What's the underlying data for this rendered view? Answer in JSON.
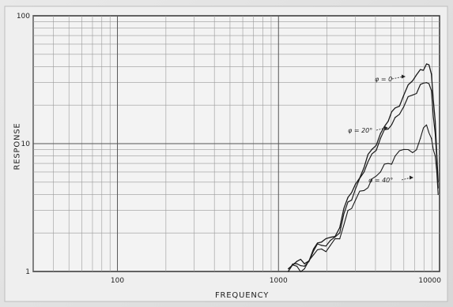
{
  "chart_data": {
    "type": "line",
    "title": "",
    "xlabel": "FREQUENCY",
    "ylabel": "RESPONSE",
    "x_scale": "log",
    "y_scale": "log",
    "xlim": [
      30,
      10000
    ],
    "ylim": [
      1,
      100
    ],
    "x_ticks": [
      {
        "value": 100,
        "label": "100"
      },
      {
        "value": 1000,
        "label": "1000"
      },
      {
        "value": 10000,
        "label": "10000"
      }
    ],
    "y_ticks": [
      {
        "value": 1,
        "label": "1"
      },
      {
        "value": 10,
        "label": "10"
      },
      {
        "value": 100,
        "label": "100"
      }
    ],
    "grid": true,
    "series": [
      {
        "name": "φ = 0",
        "x": [
          1150,
          1300,
          1450,
          1650,
          1850,
          2100,
          2400,
          2700,
          3000,
          3400,
          3800,
          4300,
          4800,
          5300,
          6000,
          6800,
          7600,
          8300,
          8900,
          9400,
          9800
        ],
        "y": [
          1.05,
          1.2,
          1.15,
          1.5,
          1.7,
          1.85,
          2.2,
          3.8,
          4.8,
          6.5,
          9,
          12,
          15,
          19,
          24,
          31,
          38,
          42,
          35,
          15,
          5
        ]
      },
      {
        "name": "φ = 20°",
        "x": [
          1150,
          1300,
          1450,
          1650,
          1850,
          2100,
          2400,
          2700,
          3000,
          3400,
          3800,
          4300,
          4800,
          5300,
          6000,
          6800,
          7600,
          8300,
          8900,
          9400,
          9800
        ],
        "y": [
          1.0,
          1.15,
          1.1,
          1.45,
          1.6,
          1.75,
          2.0,
          3.5,
          4.4,
          6.0,
          8.3,
          11,
          13,
          16,
          19.5,
          24,
          29,
          30,
          26,
          12,
          4.5
        ]
      },
      {
        "name": "φ = 40°",
        "x": [
          1150,
          1300,
          1450,
          1650,
          1850,
          2100,
          2400,
          2700,
          3000,
          3400,
          3800,
          4300,
          4800,
          5300,
          6000,
          6800,
          7600,
          8300,
          8900,
          9400,
          9800
        ],
        "y": [
          1.0,
          1.1,
          1.05,
          1.35,
          1.5,
          1.6,
          1.8,
          3.0,
          3.6,
          4.3,
          5.3,
          6.0,
          7.0,
          8.0,
          9.0,
          8.5,
          11,
          14,
          11,
          8,
          4
        ]
      }
    ],
    "annotations": [
      {
        "text": "φ = 0",
        "series": 0
      },
      {
        "text": "φ = 20°",
        "series": 1
      },
      {
        "text": "φ = 40°",
        "series": 2
      }
    ]
  }
}
